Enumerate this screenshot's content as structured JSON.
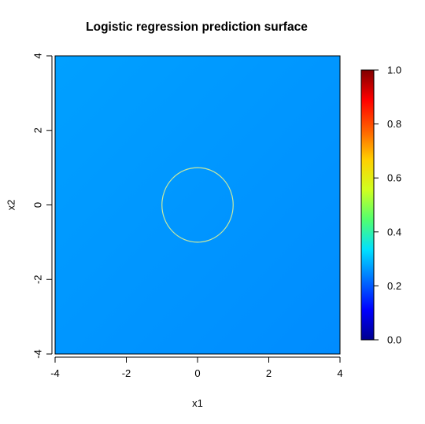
{
  "chart_data": {
    "type": "heatmap",
    "title": "Logistic regression prediction surface",
    "xlabel": "x1",
    "ylabel": "x2",
    "xlim": [
      -4,
      4
    ],
    "ylim": [
      -4,
      4
    ],
    "x_ticks": [
      -4,
      -2,
      0,
      2,
      4
    ],
    "y_ticks": [
      -4,
      -2,
      0,
      2,
      4
    ],
    "z_range": [
      0.0,
      1.0
    ],
    "surface": {
      "value_at_top_left": 0.27,
      "value_at_bottom_right": 0.25,
      "description_values": "nearly constant prediction of about 0.26 across the plane"
    },
    "contour": {
      "shape": "circle",
      "center": [
        0,
        0
      ],
      "radius": 1,
      "color": "#c8e8a0"
    },
    "colorbar": {
      "ticks": [
        0.0,
        0.2,
        0.4,
        0.6,
        0.8,
        1.0
      ],
      "tick_labels": [
        "0.0",
        "0.2",
        "0.4",
        "0.6",
        "0.8",
        "1.0"
      ],
      "colors": [
        "#00008f",
        "#0000ff",
        "#0070ff",
        "#00e0ff",
        "#50ff70",
        "#d0ff20",
        "#ffd000",
        "#ff6000",
        "#ff0000",
        "#800000"
      ]
    },
    "grid": false,
    "legend": "right (colorbar)"
  }
}
